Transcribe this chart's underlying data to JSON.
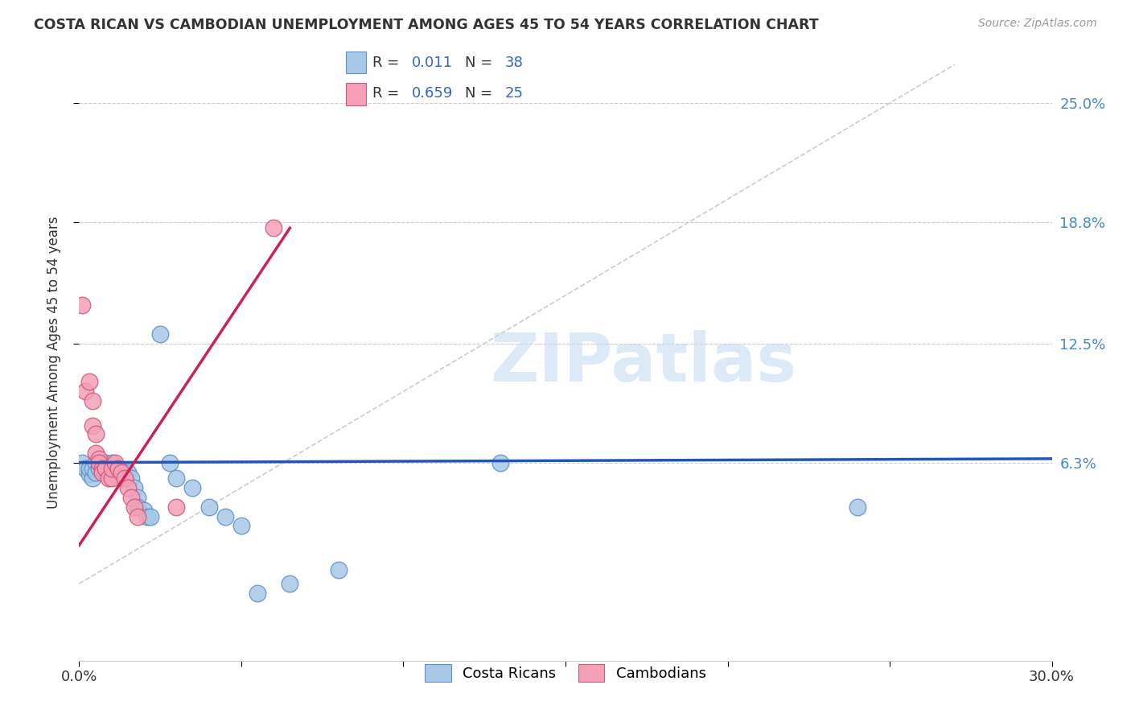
{
  "title": "COSTA RICAN VS CAMBODIAN UNEMPLOYMENT AMONG AGES 45 TO 54 YEARS CORRELATION CHART",
  "source": "Source: ZipAtlas.com",
  "ylabel": "Unemployment Among Ages 45 to 54 years",
  "xlim": [
    0.0,
    0.3
  ],
  "ylim": [
    -0.04,
    0.27
  ],
  "yticks": [
    0.063,
    0.125,
    0.188,
    0.25
  ],
  "ytick_labels": [
    "6.3%",
    "12.5%",
    "18.8%",
    "25.0%"
  ],
  "xticks": [
    0.0,
    0.05,
    0.1,
    0.15,
    0.2,
    0.25,
    0.3
  ],
  "grid_color": "#cccccc",
  "watermark_text": "ZIPatlas",
  "costa_rican_color": "#a8c8e8",
  "cambodian_color": "#f4a0b8",
  "costa_rican_edge": "#6090c8",
  "cambodian_edge": "#d05878",
  "trend_blue": "#2255bb",
  "trend_pink": "#cc2255",
  "trend_diagonal_color": "#cccccc",
  "legend_r_costa": "0.011",
  "legend_n_costa": "38",
  "legend_r_cambo": "0.659",
  "legend_n_cambo": "25",
  "costa_rican_points": [
    [
      0.001,
      0.063
    ],
    [
      0.002,
      0.06
    ],
    [
      0.003,
      0.057
    ],
    [
      0.003,
      0.06
    ],
    [
      0.004,
      0.055
    ],
    [
      0.004,
      0.06
    ],
    [
      0.005,
      0.063
    ],
    [
      0.005,
      0.058
    ],
    [
      0.006,
      0.06
    ],
    [
      0.007,
      0.063
    ],
    [
      0.008,
      0.063
    ],
    [
      0.009,
      0.06
    ],
    [
      0.01,
      0.058
    ],
    [
      0.01,
      0.063
    ],
    [
      0.011,
      0.06
    ],
    [
      0.012,
      0.058
    ],
    [
      0.013,
      0.055
    ],
    [
      0.014,
      0.058
    ],
    [
      0.015,
      0.058
    ],
    [
      0.016,
      0.055
    ],
    [
      0.017,
      0.05
    ],
    [
      0.018,
      0.045
    ],
    [
      0.018,
      0.04
    ],
    [
      0.02,
      0.038
    ],
    [
      0.021,
      0.035
    ],
    [
      0.022,
      0.035
    ],
    [
      0.025,
      0.13
    ],
    [
      0.028,
      0.063
    ],
    [
      0.03,
      0.055
    ],
    [
      0.035,
      0.05
    ],
    [
      0.04,
      0.04
    ],
    [
      0.045,
      0.035
    ],
    [
      0.05,
      0.03
    ],
    [
      0.055,
      -0.005
    ],
    [
      0.065,
      0.0
    ],
    [
      0.08,
      0.007
    ],
    [
      0.13,
      0.063
    ],
    [
      0.24,
      0.04
    ]
  ],
  "cambodian_points": [
    [
      0.001,
      0.145
    ],
    [
      0.002,
      0.1
    ],
    [
      0.003,
      0.105
    ],
    [
      0.004,
      0.095
    ],
    [
      0.004,
      0.082
    ],
    [
      0.005,
      0.078
    ],
    [
      0.005,
      0.068
    ],
    [
      0.006,
      0.065
    ],
    [
      0.006,
      0.063
    ],
    [
      0.007,
      0.06
    ],
    [
      0.007,
      0.058
    ],
    [
      0.008,
      0.06
    ],
    [
      0.009,
      0.055
    ],
    [
      0.01,
      0.055
    ],
    [
      0.01,
      0.06
    ],
    [
      0.011,
      0.063
    ],
    [
      0.012,
      0.06
    ],
    [
      0.013,
      0.058
    ],
    [
      0.014,
      0.055
    ],
    [
      0.015,
      0.05
    ],
    [
      0.016,
      0.045
    ],
    [
      0.017,
      0.04
    ],
    [
      0.018,
      0.035
    ],
    [
      0.03,
      0.04
    ],
    [
      0.06,
      0.185
    ]
  ]
}
